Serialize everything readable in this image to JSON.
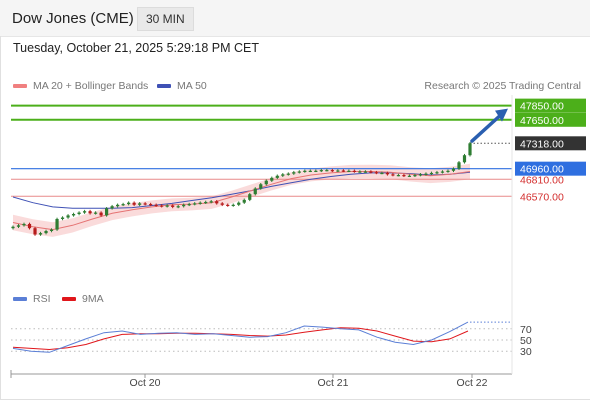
{
  "header": {
    "title": "Dow Jones (CME)",
    "timeframe": "30 MIN"
  },
  "timestamp": "Tuesday, October 21, 2025 5:29:18 PM CET",
  "legend": {
    "ma20": "MA 20 + Bollinger Bands",
    "ma50": "MA 50",
    "credit": "Research © 2025 Trading Central",
    "rsi": "RSI",
    "rsi_ma": "9MA"
  },
  "colors": {
    "up_candle": "#2e7d32",
    "down_candle": "#b71c1c",
    "ma20": "#e57373",
    "bollinger_fill": "#f8c8c8",
    "ma50": "#3f51b5",
    "resistance": "#4caf1a",
    "pivot": "#2f6fe0",
    "support": "#d32f2f",
    "arrow": "#2a5fb0"
  },
  "chart_data": [
    {
      "type": "line",
      "title": "",
      "price_range": [
        45600,
        48000
      ],
      "x_ticks": [
        "Oct 20",
        "Oct 21",
        "Oct 22"
      ],
      "levels": [
        {
          "value": 47850.0,
          "label": "47850.00",
          "kind": "resistance"
        },
        {
          "value": 47650.0,
          "label": "47650.00",
          "kind": "resistance"
        },
        {
          "value": 47318.0,
          "label": "47318.00",
          "kind": "last"
        },
        {
          "value": 46960.0,
          "label": "46960.00",
          "kind": "pivot"
        },
        {
          "value": 46810.0,
          "label": "46810.00",
          "kind": "support"
        },
        {
          "value": 46570.0,
          "label": "46570.00",
          "kind": "support"
        }
      ],
      "series": [
        {
          "name": "Dow Jones (CME)",
          "values": [
            46140,
            46160,
            46180,
            46120,
            46030,
            46050,
            46080,
            46100,
            46250,
            46270,
            46300,
            46320,
            46340,
            46360,
            46330,
            46340,
            46300,
            46400,
            46430,
            46450,
            46460,
            46480,
            46450,
            46470,
            46460,
            46450,
            46440,
            46430,
            46440,
            46420,
            46430,
            46450,
            46460,
            46470,
            46480,
            46490,
            46500,
            46470,
            46450,
            46440,
            46450,
            46480,
            46520,
            46600,
            46680,
            46740,
            46790,
            46830,
            46860,
            46880,
            46890,
            46910,
            46920,
            46930,
            46930,
            46930,
            46940,
            46940,
            46930,
            46935,
            46930,
            46930,
            46920,
            46920,
            46920,
            46910,
            46900,
            46900,
            46880,
            46870,
            46870,
            46860,
            46860,
            46870,
            46880,
            46890,
            46900,
            46910,
            46920,
            46930,
            46960,
            47050,
            47150,
            47318
          ]
        },
        {
          "name": "MA 20",
          "values": [
            46200,
            46140,
            46100,
            46160,
            46250,
            46330,
            46380,
            46420,
            46450,
            46460,
            46480,
            46560,
            46650,
            46740,
            46820,
            46870,
            46900,
            46920,
            46920,
            46910,
            46880,
            46860,
            46880,
            46920
          ]
        },
        {
          "name": "MA 50",
          "values": [
            46560,
            46480,
            46420,
            46400,
            46400,
            46400,
            46410,
            46440,
            46470,
            46510,
            46550,
            46600,
            46650,
            46710,
            46760,
            46810,
            46850,
            46880,
            46900,
            46900,
            46890,
            46870,
            46880,
            46910
          ]
        }
      ],
      "projection": {
        "from": 47350,
        "to": 47850
      }
    },
    {
      "type": "line",
      "title": "",
      "ylim": [
        0,
        100
      ],
      "y_ticks": [
        70,
        50,
        30
      ],
      "series": [
        {
          "name": "RSI",
          "values": [
            35,
            30,
            28,
            40,
            52,
            63,
            66,
            60,
            62,
            63,
            60,
            61,
            58,
            55,
            56,
            63,
            75,
            73,
            70,
            68,
            55,
            46,
            42,
            50,
            65,
            82
          ]
        },
        {
          "name": "9MA",
          "values": [
            37,
            35,
            33,
            36,
            42,
            52,
            60,
            61,
            61,
            62,
            62,
            61,
            60,
            58,
            57,
            59,
            64,
            68,
            72,
            71,
            66,
            57,
            48,
            47,
            52,
            66
          ]
        }
      ]
    }
  ]
}
